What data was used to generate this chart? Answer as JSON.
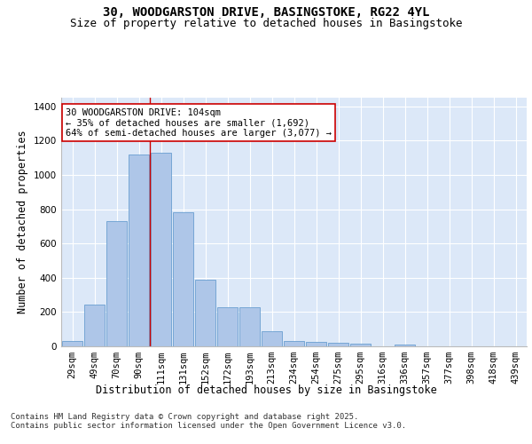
{
  "title_line1": "30, WOODGARSTON DRIVE, BASINGSTOKE, RG22 4YL",
  "title_line2": "Size of property relative to detached houses in Basingstoke",
  "xlabel": "Distribution of detached houses by size in Basingstoke",
  "ylabel": "Number of detached properties",
  "bar_labels": [
    "29sqm",
    "49sqm",
    "70sqm",
    "90sqm",
    "111sqm",
    "131sqm",
    "152sqm",
    "172sqm",
    "193sqm",
    "213sqm",
    "234sqm",
    "254sqm",
    "275sqm",
    "295sqm",
    "316sqm",
    "336sqm",
    "357sqm",
    "377sqm",
    "398sqm",
    "418sqm",
    "439sqm"
  ],
  "bar_values": [
    30,
    245,
    730,
    1120,
    1130,
    780,
    390,
    230,
    230,
    90,
    30,
    25,
    22,
    18,
    0,
    8,
    0,
    0,
    0,
    0,
    0
  ],
  "bar_color": "#aec6e8",
  "bar_edgecolor": "#6a9fd0",
  "background_color": "#dce8f8",
  "grid_color": "#ffffff",
  "vline_x": 3.5,
  "vline_color": "#cc0000",
  "annotation_text": "30 WOODGARSTON DRIVE: 104sqm\n← 35% of detached houses are smaller (1,692)\n64% of semi-detached houses are larger (3,077) →",
  "annotation_box_color": "#ffffff",
  "annotation_edge_color": "#cc0000",
  "ylim": [
    0,
    1450
  ],
  "yticks": [
    0,
    200,
    400,
    600,
    800,
    1000,
    1200,
    1400
  ],
  "title_fontsize": 10,
  "subtitle_fontsize": 9,
  "axis_label_fontsize": 8.5,
  "tick_fontsize": 7.5,
  "annot_fontsize": 7.5,
  "footer_fontsize": 6.5,
  "footer_text": "Contains HM Land Registry data © Crown copyright and database right 2025.\nContains public sector information licensed under the Open Government Licence v3.0."
}
